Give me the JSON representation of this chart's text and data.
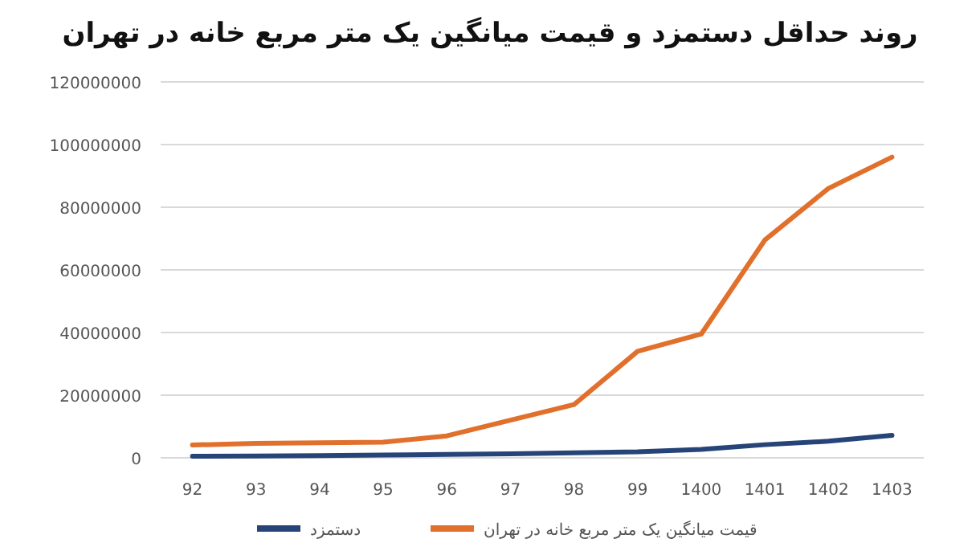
{
  "chart_data": {
    "type": "line",
    "title": "روند حداقل دستمزد و قیمت میانگین یک متر مربع خانه در تهران",
    "categories": [
      "92",
      "93",
      "94",
      "95",
      "96",
      "97",
      "98",
      "99",
      "1400",
      "1401",
      "1402",
      "1403"
    ],
    "series": [
      {
        "name": "دستمزد",
        "color": "#264478",
        "values": [
          500000,
          600000,
          700000,
          900000,
          1100000,
          1300000,
          1600000,
          1900000,
          2700000,
          4200000,
          5300000,
          7200000
        ]
      },
      {
        "name": "قیمت میانگین یک متر مربع  خانه در تهران",
        "color": "#e0702c",
        "values": [
          4100000,
          4600000,
          4800000,
          5000000,
          7000000,
          12000000,
          17000000,
          34000000,
          39500000,
          69500000,
          86000000,
          96000000
        ]
      }
    ],
    "ylim": [
      0,
      120000000
    ],
    "yticks": [
      0,
      20000000,
      40000000,
      60000000,
      80000000,
      100000000,
      120000000
    ],
    "grid": "y",
    "legend": "bottom",
    "marker": "none",
    "line_style": "solid"
  }
}
